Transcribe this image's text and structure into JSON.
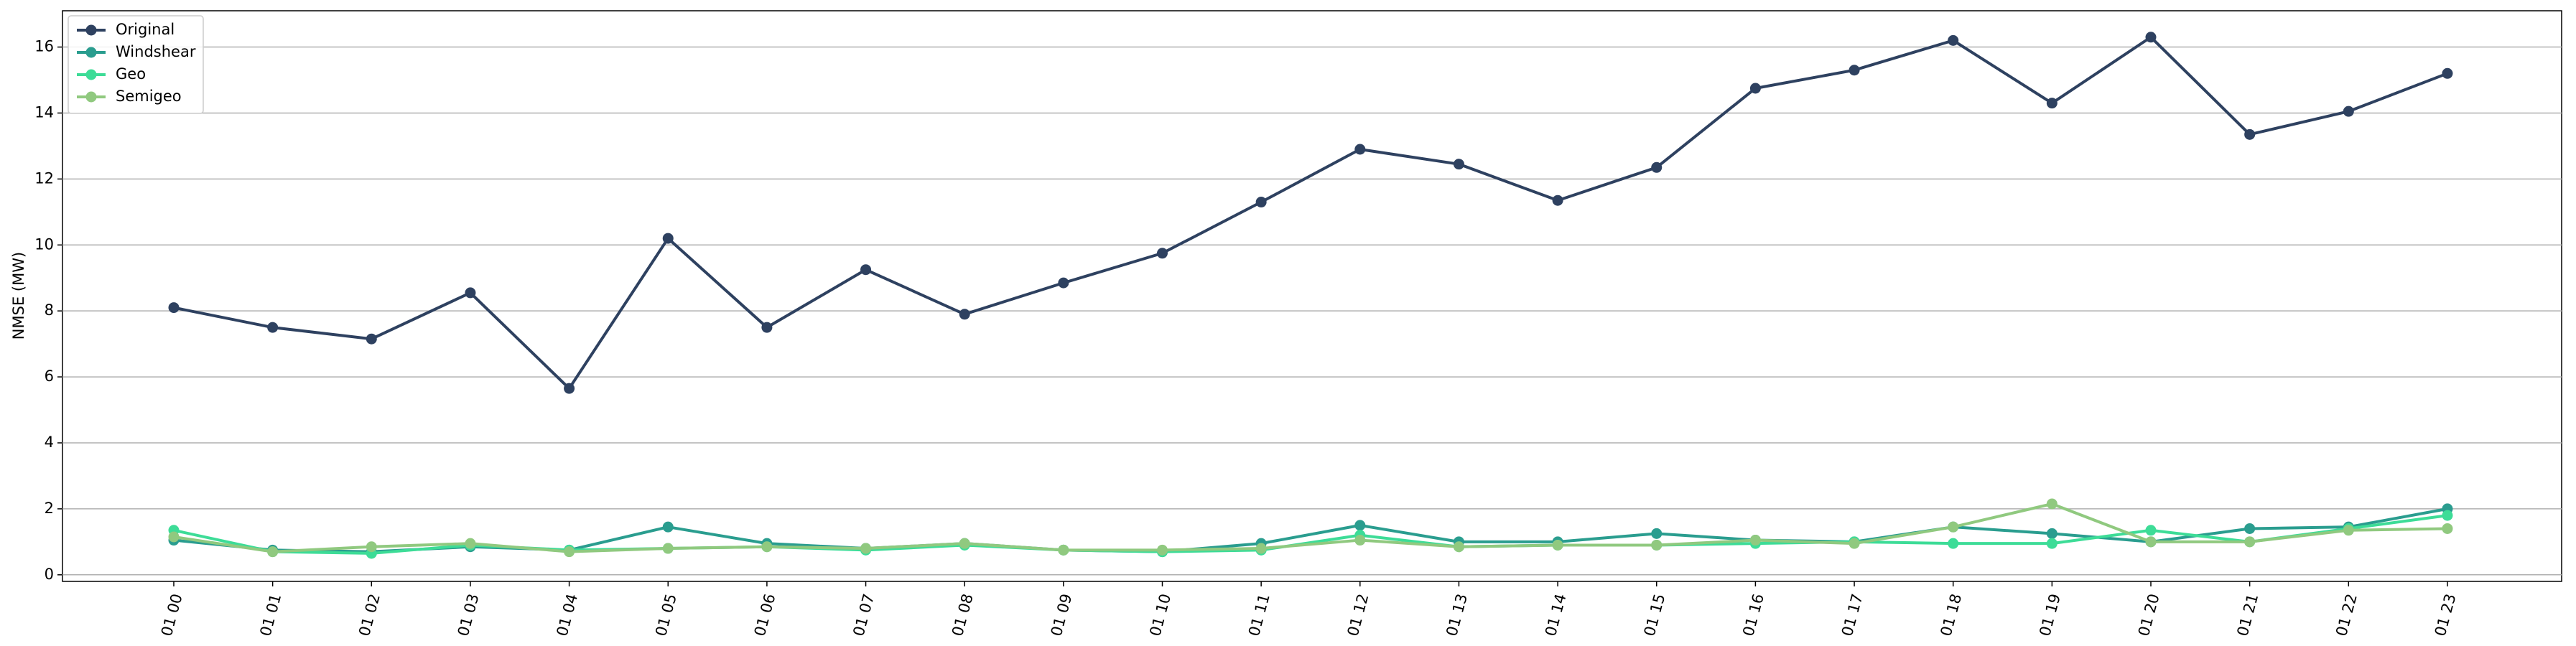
{
  "chart_data": {
    "type": "line",
    "title": "",
    "xlabel": "",
    "ylabel": "NMSE (MW)",
    "ylim": [
      -0.2,
      17.1
    ],
    "yticks": [
      0,
      2,
      4,
      6,
      8,
      10,
      12,
      14,
      16
    ],
    "grid": "horizontal",
    "legend": "top-left",
    "categories": [
      "01 00",
      "01 01",
      "01 02",
      "01 03",
      "01 04",
      "01 05",
      "01 06",
      "01 07",
      "01 08",
      "01 09",
      "01 10",
      "01 11",
      "01 12",
      "01 13",
      "01 14",
      "01 15",
      "01 16",
      "01 17",
      "01 18",
      "01 19",
      "01 20",
      "01 21",
      "01 22",
      "01 23"
    ],
    "series": [
      {
        "name": "Original",
        "color": "#2e4160",
        "values": [
          8.1,
          7.5,
          7.15,
          8.55,
          5.65,
          10.2,
          7.5,
          9.25,
          7.9,
          8.85,
          9.75,
          11.3,
          12.9,
          12.45,
          11.35,
          12.35,
          14.75,
          15.3,
          16.2,
          14.3,
          16.3,
          13.35,
          14.05,
          15.2
        ]
      },
      {
        "name": "Windshear",
        "color": "#2a9d8f",
        "values": [
          1.05,
          0.75,
          0.7,
          0.85,
          0.75,
          1.45,
          0.95,
          0.8,
          0.95,
          0.75,
          0.7,
          0.95,
          1.5,
          1.0,
          1.0,
          1.25,
          1.05,
          1.0,
          1.45,
          1.25,
          1.0,
          1.4,
          1.45,
          2.0
        ]
      },
      {
        "name": "Geo",
        "color": "#3ddc97",
        "values": [
          1.35,
          0.7,
          0.65,
          0.9,
          0.75,
          0.8,
          0.85,
          0.75,
          0.9,
          0.75,
          0.7,
          0.75,
          1.2,
          0.85,
          0.9,
          0.9,
          0.95,
          1.0,
          0.95,
          0.95,
          1.35,
          1.0,
          1.4,
          1.8
        ]
      },
      {
        "name": "Semigeo",
        "color": "#90c97f",
        "values": [
          1.15,
          0.7,
          0.85,
          0.95,
          0.7,
          0.8,
          0.85,
          0.8,
          0.95,
          0.75,
          0.75,
          0.8,
          1.05,
          0.85,
          0.9,
          0.9,
          1.05,
          0.95,
          1.45,
          2.15,
          1.0,
          1.0,
          1.35,
          1.4
        ]
      }
    ]
  }
}
